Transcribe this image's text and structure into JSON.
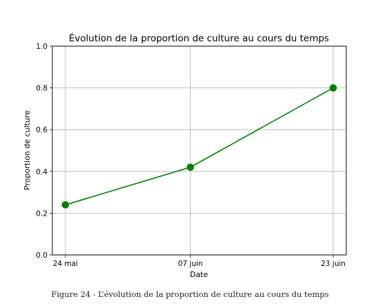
{
  "chart_data": {
    "type": "line",
    "title": "Évolution de la proportion de culture au cours du temps",
    "xlabel": "Date",
    "ylabel": "Proportion de culture",
    "categories": [
      "24 mai",
      "07 juin",
      "23 juin"
    ],
    "x": [
      "2024-05-24",
      "2024-06-07",
      "2024-06-23"
    ],
    "series": [
      {
        "values": [
          0.24,
          0.42,
          0.8
        ],
        "color": "#008000",
        "marker": "circle"
      }
    ],
    "ylim": [
      0.0,
      1.0
    ],
    "yticks": [
      "0.0",
      "0.2",
      "0.4",
      "0.6",
      "0.8",
      "1.0"
    ],
    "grid": true
  },
  "caption": "Figure 24 - L’évolution de la proportion de culture au cours du temps"
}
